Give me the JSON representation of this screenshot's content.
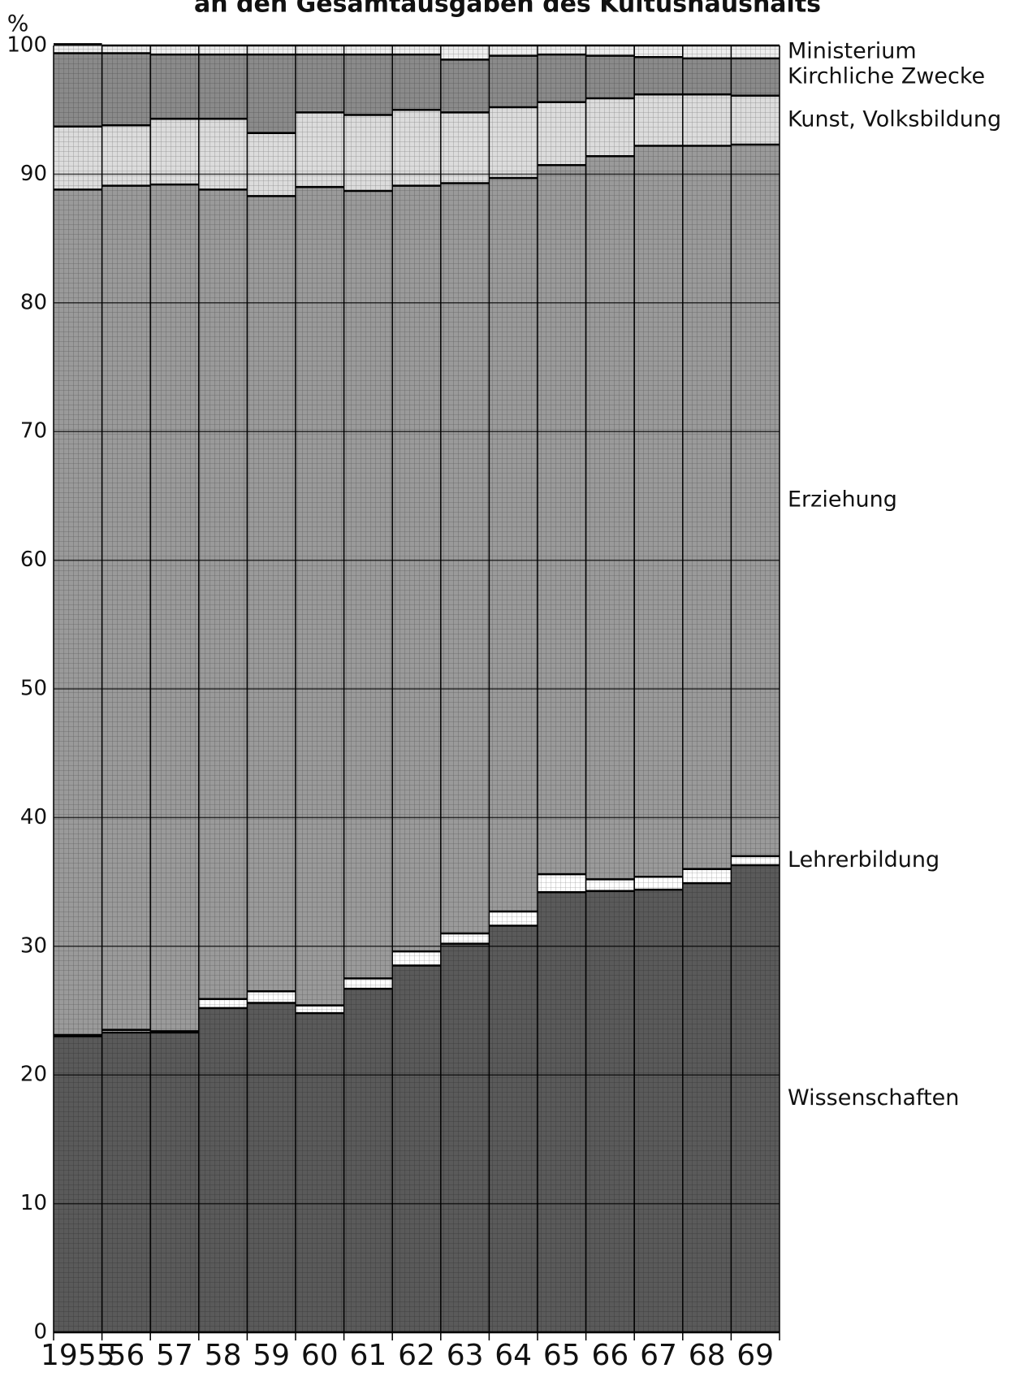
{
  "chart_data": {
    "type": "stacked_step",
    "title": "an den Gesamtausgaben des Kultushaushalts",
    "ylabel": "%",
    "categories": [
      "1955",
      "56",
      "57",
      "58",
      "59",
      "60",
      "61",
      "62",
      "63",
      "64",
      "65",
      "66",
      "67",
      "68",
      "69"
    ],
    "series": [
      {
        "name": "Wissenschaften",
        "color": "#5a5a5a",
        "values": [
          23.0,
          23.3,
          23.3,
          25.2,
          25.6,
          24.8,
          26.7,
          28.5,
          30.2,
          31.6,
          34.2,
          34.3,
          34.4,
          34.9,
          36.3
        ]
      },
      {
        "name": "Lehrerbildung",
        "color": "#ffffff",
        "values": [
          0.1,
          0.2,
          0.1,
          0.7,
          0.9,
          0.6,
          0.8,
          1.1,
          0.8,
          1.1,
          1.4,
          0.9,
          1.0,
          1.1,
          0.7
        ]
      },
      {
        "name": "Erziehung",
        "color": "#9a9a9a",
        "values": [
          65.7,
          65.6,
          65.8,
          62.9,
          61.8,
          63.6,
          61.2,
          59.5,
          58.3,
          57.0,
          55.1,
          56.2,
          56.8,
          56.2,
          55.3
        ]
      },
      {
        "name": "Kunst, Volksbildung",
        "color": "#dcdcdc",
        "values": [
          4.9,
          4.7,
          5.1,
          5.5,
          4.9,
          5.8,
          5.9,
          5.9,
          5.5,
          5.5,
          4.9,
          4.5,
          4.0,
          4.0,
          3.8
        ]
      },
      {
        "name": "Kirchliche Zwecke",
        "color": "#8a8a8a",
        "values": [
          5.7,
          5.6,
          5.0,
          5.0,
          6.1,
          4.5,
          4.7,
          4.3,
          4.1,
          4.0,
          3.7,
          3.3,
          2.9,
          2.8,
          2.9
        ]
      },
      {
        "name": "Ministerium",
        "color": "#eeeeee",
        "values": [
          0.7,
          0.6,
          0.7,
          0.7,
          0.7,
          0.7,
          0.7,
          0.7,
          1.1,
          0.8,
          0.7,
          0.8,
          0.9,
          1.0,
          1.0
        ]
      }
    ],
    "ylim": [
      0,
      100
    ],
    "yticks": [
      0,
      10,
      20,
      30,
      40,
      50,
      60,
      70,
      80,
      90,
      100
    ],
    "grid": true
  }
}
